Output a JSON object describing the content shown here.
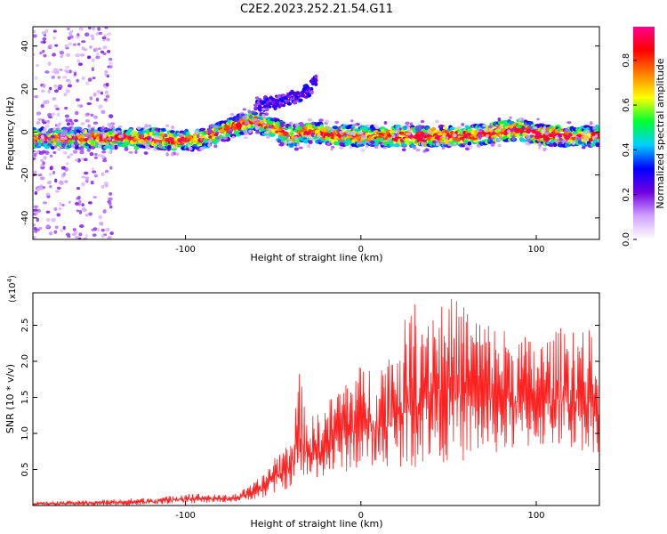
{
  "title": "C2E2.2023.252.21.54.G11",
  "chart_data": [
    {
      "type": "heatmap",
      "title": "C2E2.2023.252.21.54.G11",
      "xlabel": "Height of straight line (km)",
      "ylabel": "Frequency (Hz)",
      "xlim": [
        -187,
        136
      ],
      "ylim": [
        -50,
        49
      ],
      "xticks": [
        -100,
        0,
        100
      ],
      "yticks": [
        -40,
        -20,
        0,
        20,
        40
      ],
      "colorbar": {
        "label": "Normalized spectral amplitude",
        "range": [
          0,
          0.95
        ],
        "ticks": [
          "0.0",
          "0.2",
          "0.4",
          "0.6",
          "0.8"
        ],
        "tick_values": [
          0.0,
          0.2,
          0.4,
          0.6,
          0.8
        ],
        "colors": [
          "#ffffff",
          "#d0a0ff",
          "#7000e0",
          "#0000ff",
          "#00d0ff",
          "#00ff30",
          "#ffff00",
          "#ff8000",
          "#ff0000",
          "#ff0090"
        ]
      },
      "ridge": {
        "x": [
          -187,
          -150,
          -120,
          -100,
          -90,
          -80,
          -70,
          -60,
          -50,
          -45,
          -40,
          -35,
          -30,
          -20,
          0,
          20,
          40,
          60,
          80,
          90,
          100,
          120,
          136
        ],
        "y": [
          -3,
          -3,
          -3,
          -4,
          -3,
          0,
          3,
          5,
          2,
          0,
          -2,
          -1,
          0,
          -1,
          -2,
          -2,
          -2,
          -2,
          0,
          1,
          -1,
          -2,
          -2
        ]
      },
      "upper_branch": {
        "x": [
          -60,
          -50,
          -45,
          -40,
          -35,
          -30,
          -25
        ],
        "y": [
          10,
          12,
          14,
          16,
          18,
          21,
          26
        ]
      },
      "grid": false
    },
    {
      "type": "line",
      "xlabel": "Height of straight line (km)",
      "ylabel": "SNR (10 * v/v)",
      "y_scale_label": "(x10",
      "y_scale_exponent": "4",
      "xlim": [
        -187,
        136
      ],
      "ylim": [
        0,
        2.95
      ],
      "xticks": [
        -100,
        0,
        100
      ],
      "yticks": [
        0.5,
        1.0,
        1.5,
        2.0,
        2.5
      ],
      "ytick_labels": [
        "0.5",
        "1.0",
        "1.5",
        "2.0",
        "2.5"
      ],
      "color": "#ff2020",
      "envelope": {
        "x": [
          -187,
          -160,
          -130,
          -110,
          -100,
          -80,
          -70,
          -62,
          -55,
          -50,
          -45,
          -40,
          -35,
          -30,
          -20,
          -10,
          0,
          10,
          20,
          30,
          40,
          50,
          60,
          70,
          80,
          90,
          100,
          110,
          120,
          130,
          136
        ],
        "high": [
          0.05,
          0.07,
          0.1,
          0.13,
          0.18,
          0.15,
          0.18,
          0.3,
          0.45,
          0.7,
          0.8,
          0.95,
          1.85,
          1.2,
          1.4,
          1.8,
          1.95,
          2.0,
          2.3,
          2.85,
          2.9,
          2.9,
          2.85,
          2.6,
          2.5,
          2.4,
          2.3,
          2.4,
          2.6,
          2.45,
          2.1
        ],
        "low": [
          0.0,
          0.0,
          0.0,
          0.02,
          0.03,
          0.04,
          0.05,
          0.08,
          0.1,
          0.15,
          0.2,
          0.25,
          0.3,
          0.35,
          0.4,
          0.45,
          0.5,
          0.5,
          0.55,
          0.5,
          0.6,
          0.6,
          0.6,
          0.7,
          0.7,
          0.75,
          0.8,
          0.8,
          0.75,
          0.75,
          0.7
        ]
      },
      "grid": false
    }
  ]
}
